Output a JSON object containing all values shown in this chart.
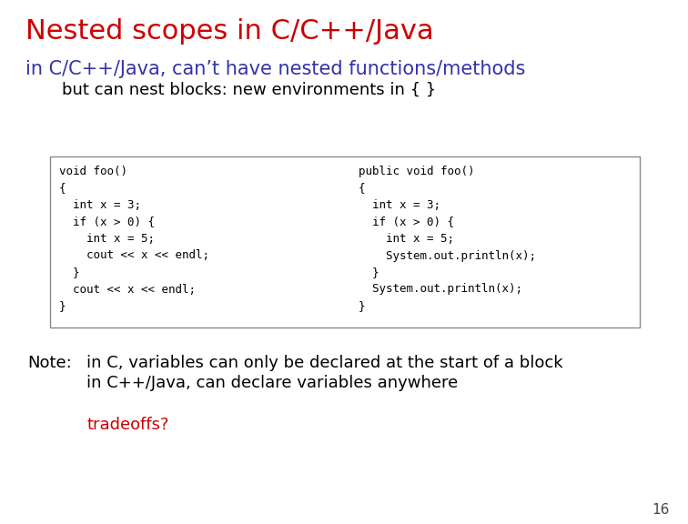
{
  "title": "Nested scopes in C/C++/Java",
  "title_color": "#cc0000",
  "subtitle": "in C/C++/Java, can’t have nested functions/methods",
  "subtitle_color": "#3333aa",
  "subsubtitle": "but can nest blocks: new environments in { }",
  "subsubtitle_color": "#000000",
  "code_left": [
    "void foo()",
    "{",
    "  int x = 3;",
    "  if (x > 0) {",
    "    int x = 5;",
    "    cout << x << endl;",
    "  }",
    "  cout << x << endl;",
    "}"
  ],
  "code_right": [
    "public void foo()",
    "{",
    "  int x = 3;",
    "  if (x > 0) {",
    "    int x = 5;",
    "    System.out.println(x);",
    "  }",
    "  System.out.println(x);",
    "}"
  ],
  "note_label": "Note:",
  "note_lines": [
    "in C, variables can only be declared at the start of a block",
    "in C++/Java, can declare variables anywhere"
  ],
  "tradeoffs": "tradeoffs?",
  "tradeoffs_color": "#cc0000",
  "page_number": "16",
  "background_color": "#ffffff",
  "code_font_color": "#000000",
  "note_color": "#000000",
  "box_edge_color": "#888888",
  "box_face_color": "#ffffff",
  "title_fontsize": 22,
  "subtitle_fontsize": 15,
  "subsubtitle_fontsize": 13,
  "code_fontsize": 9,
  "note_fontsize": 13,
  "page_fontsize": 11
}
